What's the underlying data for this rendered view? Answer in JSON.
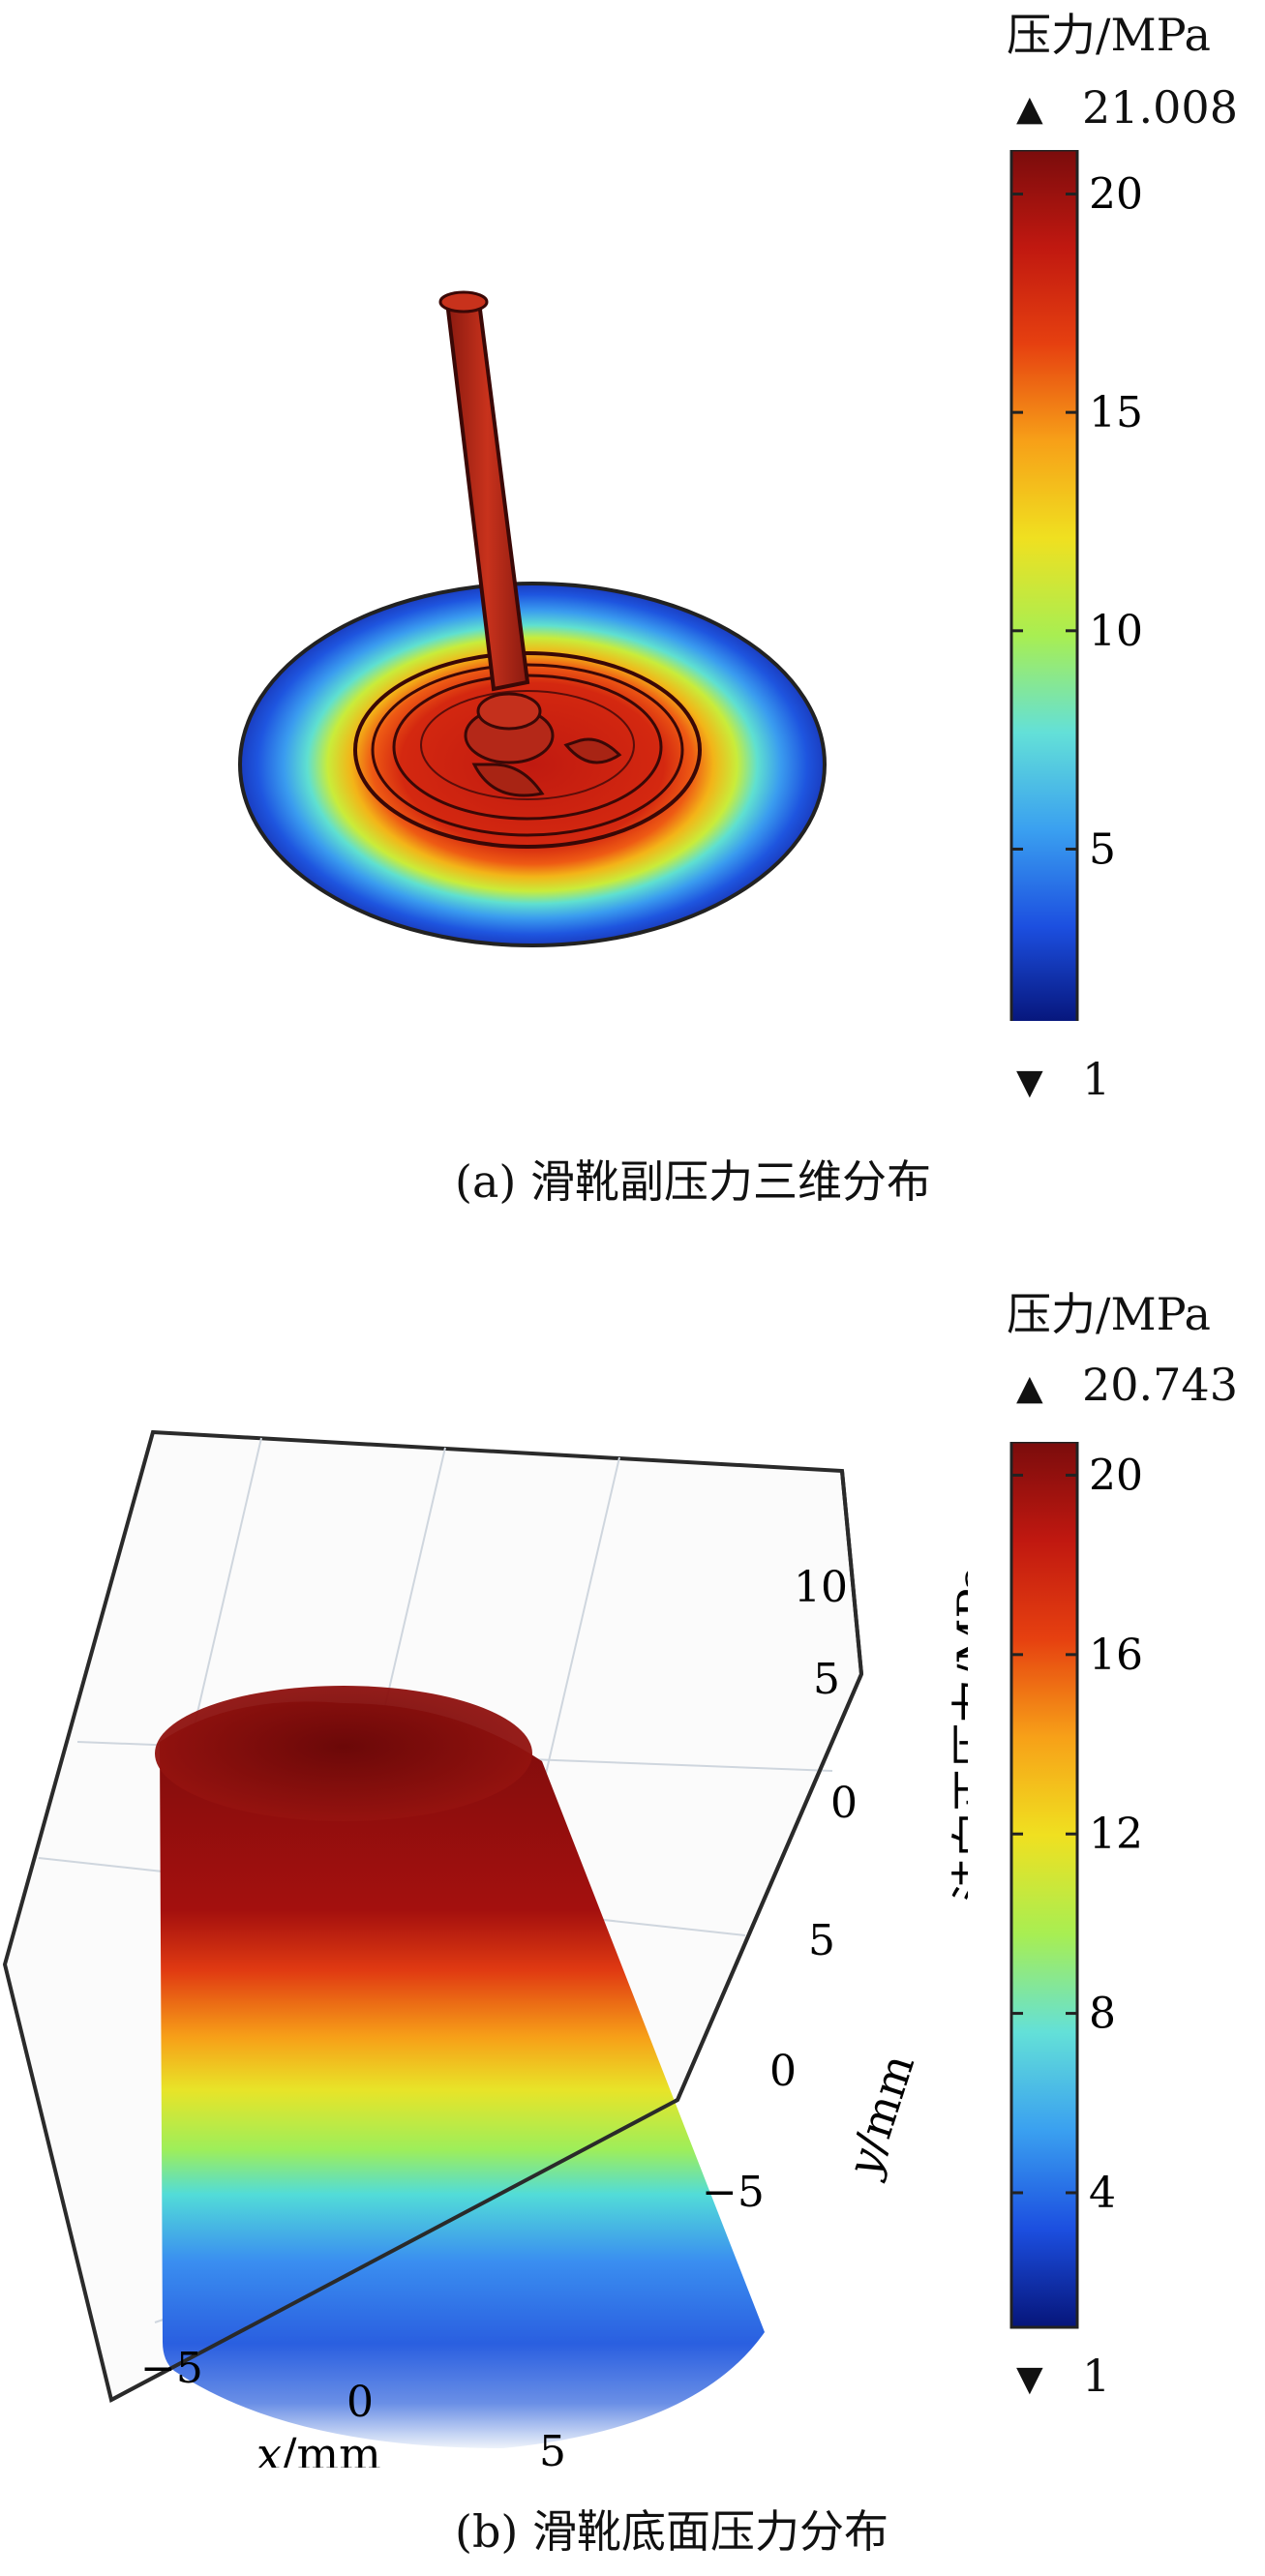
{
  "chart_data": [
    {
      "type": "surface-3d",
      "subplot": "a",
      "caption": "(a) 滑靴副压力三维分布",
      "colorbar": {
        "title": "压力/MPa",
        "max_label": "21.008",
        "min_label": "1",
        "ticks": [
          "20",
          "15",
          "10",
          "5"
        ],
        "tick_values": [
          20,
          15,
          10,
          5
        ],
        "range": [
          1,
          21.008
        ],
        "colormap": [
          "#06157a",
          "#1c4fe0",
          "#3aa0f0",
          "#63e0d8",
          "#a8ee52",
          "#f0e020",
          "#f7a018",
          "#e64010",
          "#c01810",
          "#7a0c0c"
        ]
      }
    },
    {
      "type": "surface-3d",
      "subplot": "b",
      "caption": "(b) 滑靴底面压力分布",
      "zlabel": "法向正压力/MPa",
      "xlabel_var": "x",
      "xlabel_unit": "/mm",
      "ylabel_var": "y",
      "ylabel_unit": "/mm",
      "x_ticks": [
        "−5",
        "0",
        "5"
      ],
      "y_ticks": [
        "5",
        "0",
        "−5"
      ],
      "z_ticks": [
        "10",
        "5",
        "0"
      ],
      "colorbar": {
        "title": "压力/MPa",
        "max_label": "20.743",
        "min_label": "1",
        "ticks": [
          "20",
          "16",
          "12",
          "8",
          "4"
        ],
        "tick_values": [
          20,
          16,
          12,
          8,
          4
        ],
        "range": [
          1,
          20.743
        ],
        "colormap": [
          "#06157a",
          "#1c4fe0",
          "#3aa0f0",
          "#63e0d8",
          "#a8ee52",
          "#f0e020",
          "#f7a018",
          "#e64010",
          "#c01810",
          "#7a0c0c"
        ]
      }
    }
  ],
  "icons": {
    "max_marker": "triangle-up-icon",
    "min_marker": "triangle-down-icon"
  }
}
